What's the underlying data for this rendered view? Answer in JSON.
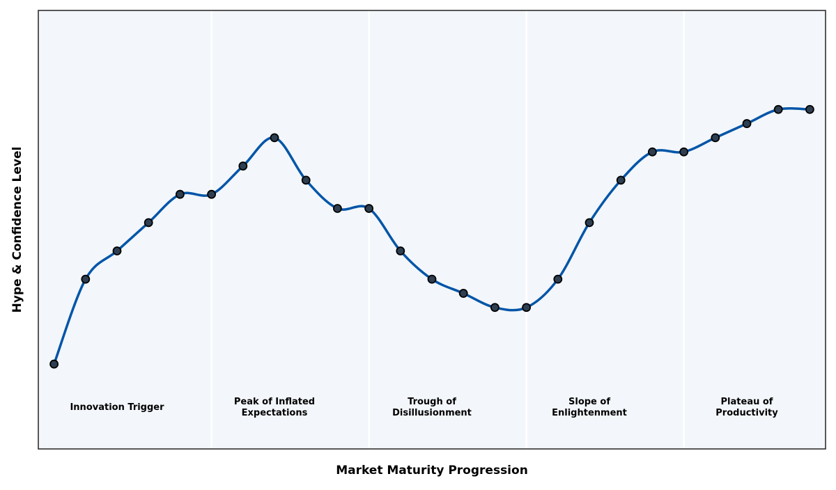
{
  "chart_data": {
    "type": "line",
    "title": "",
    "xlabel": "Market Maturity Progression",
    "ylabel": "Hype & Confidence Level",
    "x": [
      0,
      1,
      2,
      3,
      4,
      5,
      6,
      7,
      8,
      9,
      10,
      11,
      12,
      13,
      14,
      15,
      16,
      17,
      18,
      19,
      20,
      21,
      22,
      23,
      24
    ],
    "series": [
      {
        "values": [
          10,
          40,
          50,
          60,
          70,
          70,
          80,
          90,
          75,
          65,
          65,
          50,
          40,
          35,
          30,
          30,
          40,
          60,
          75,
          85,
          85,
          90,
          95,
          100,
          100
        ],
        "color": "#0055a8",
        "marker_fill": "#2e3f52",
        "marker_edge": "#000000",
        "smooth": true
      }
    ],
    "xlim": [
      -0.5,
      24.5
    ],
    "ylim": [
      -20,
      135
    ],
    "xticks_visible": false,
    "yticks_visible": false,
    "grid": false,
    "phase_dividers": [
      5,
      10,
      15,
      20
    ],
    "phases": [
      {
        "label": "Innovation Trigger",
        "center": 2
      },
      {
        "label": "Peak of Inflated\nExpectations",
        "center": 7
      },
      {
        "label": "Trough of\nDisillusionment",
        "center": 12
      },
      {
        "label": "Slope of\nEnlightenment",
        "center": 17
      },
      {
        "label": "Plateau of\nProductivity",
        "center": 22
      }
    ],
    "phase_label_y": -5,
    "background_color": "#f3f6fa",
    "divider_color": "#ffffff"
  }
}
